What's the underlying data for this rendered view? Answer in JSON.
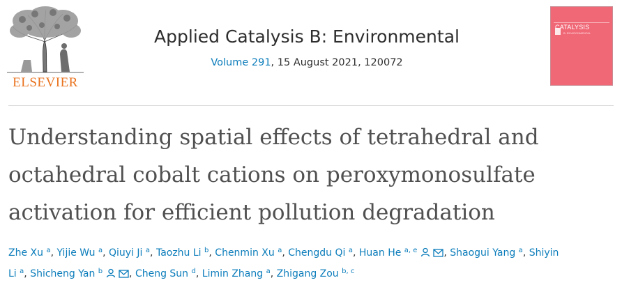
{
  "header": {
    "publisher": "ELSEVIER",
    "journal": "Applied Catalysis B: Environmental",
    "volume_link": "Volume 291",
    "issue_rest": ", 15 August 2021, 120072",
    "cover": {
      "title": "CATALYSIS",
      "subtitle": "B: ENVIRONMENTAL",
      "color": "#f06776"
    }
  },
  "article": {
    "title_lines": [
      "Understanding spatial effects of tetrahedral and",
      "octahedral cobalt cations on peroxymonosulfate",
      "activation for efficient pollution degradation"
    ]
  },
  "authors": [
    {
      "name": "Zhe Xu",
      "aff": "a"
    },
    {
      "name": "Yijie Wu",
      "aff": "a"
    },
    {
      "name": "Qiuyi Ji",
      "aff": "a"
    },
    {
      "name": "Taozhu Li",
      "aff": "b"
    },
    {
      "name": "Chenmin Xu",
      "aff": "a"
    },
    {
      "name": "Chengdu Qi",
      "aff": "a"
    },
    {
      "name": "Huan He",
      "aff": "a, e",
      "icons": [
        "person-icon",
        "mail-icon"
      ]
    },
    {
      "name": "Shaogui Yang",
      "aff": "a"
    },
    {
      "name": "Shiyin",
      "aff": ""
    },
    {
      "name": "Li",
      "aff": "a"
    },
    {
      "name": "Shicheng Yan",
      "aff": "b",
      "icons": [
        "person-icon",
        "mail-icon"
      ]
    },
    {
      "name": "Cheng Sun",
      "aff": "d"
    },
    {
      "name": "Limin Zhang",
      "aff": "a"
    },
    {
      "name": "Zhigang Zou",
      "aff": "b, c"
    }
  ],
  "separator": ", ",
  "colors": {
    "link": "#0c7dbb",
    "title": "#505050",
    "publisher": "#e9711c"
  }
}
